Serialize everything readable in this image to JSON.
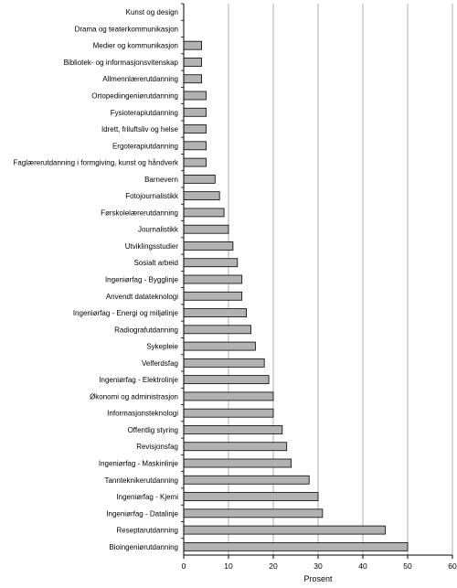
{
  "chart_data": {
    "type": "bar",
    "orientation": "horizontal",
    "categories": [
      "Kunst og design",
      "Drama og teaterkommunikasjon",
      "Medier og kommunikasjon",
      "Bibliotek- og informasjonsvitenskap",
      "Allmennlærerutdanning",
      "Ortopediingeniørutdanning",
      "Fysioterapiutdanning",
      "Idrett, friluftsliv og helse",
      "Ergoterapiutdanning",
      "Faglærerutdanning i formgiving, kunst og håndverk",
      "Barnevern",
      "Fotojournalistikk",
      "Førskolelærerutdanning",
      "Journalistikk",
      "Utviklingsstudier",
      "Sosialt arbeid",
      "Ingeniørfag - Bygglinje",
      "Anvendt datateknologi",
      "Ingeniørfag - Energi og miljølinje",
      "Radiografutdanning",
      "Sykepleie",
      "Velferdsfag",
      "Ingeniørfag - Elektrolinje",
      "Økonomi og administrasjon",
      "Informasjonsteknologi",
      "Offentlig styring",
      "Revisjonsfag",
      "Ingeniørfag - Maskinlinje",
      "Tannteknikerutdanning",
      "Ingeniørfag - Kjemi",
      "Ingeniørfag - Datalinje",
      "Reseptarutdanning",
      "Bioingeniørutdanning"
    ],
    "values": [
      0,
      0,
      4,
      4,
      4,
      5,
      5,
      5,
      5,
      5,
      7,
      8,
      9,
      10,
      11,
      12,
      13,
      13,
      14,
      15,
      16,
      18,
      19,
      20,
      20,
      22,
      23,
      24,
      28,
      30,
      31,
      45,
      50
    ],
    "xlim": [
      0,
      60
    ],
    "xticks": [
      "0",
      "10",
      "20",
      "30",
      "40",
      "50",
      "60"
    ],
    "xlabel": "Prosent",
    "ylabel": "",
    "title": "",
    "grid": "vertical",
    "bar_color": "#b2b2b2",
    "bar_edge_color": "#000000",
    "grid_color": "#9a9a9a"
  }
}
